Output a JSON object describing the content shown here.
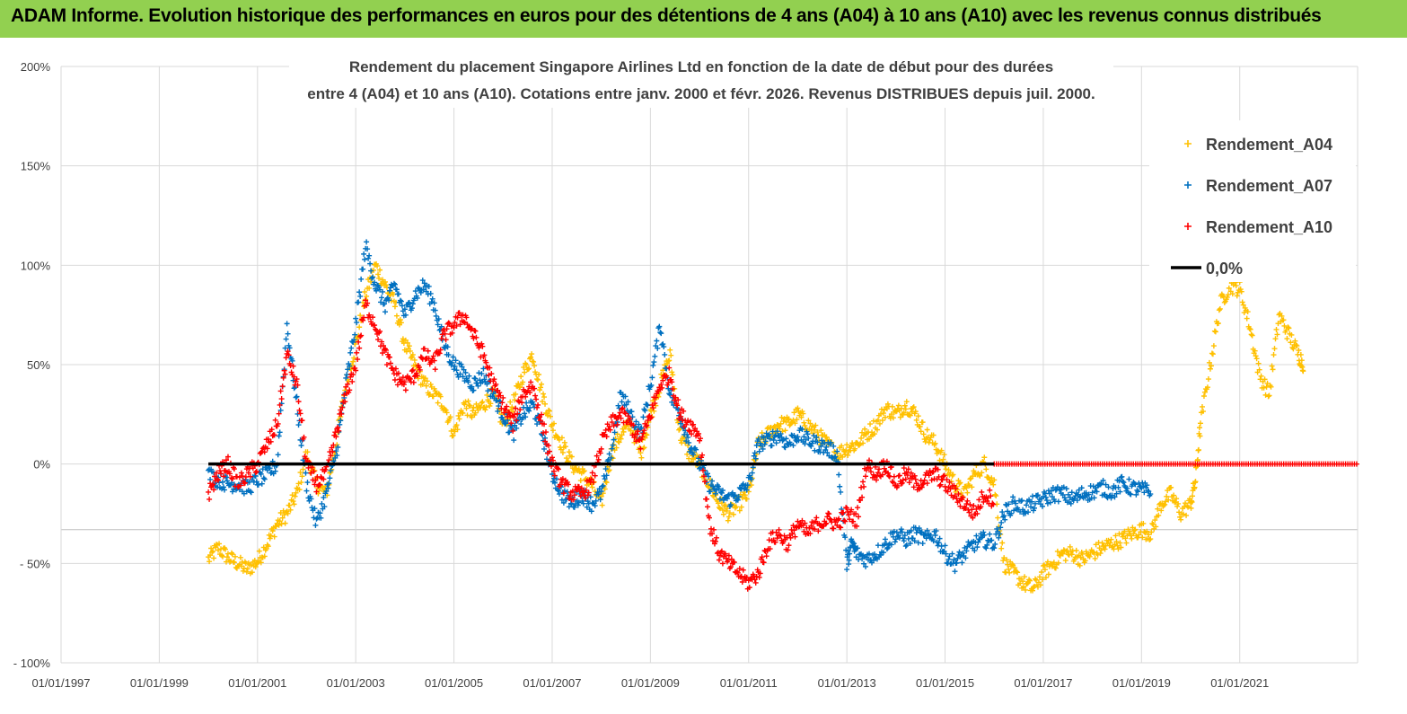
{
  "banner": {
    "title": "ADAM Informe. Evolution historique des performances en euros pour des détentions de 4 ans (A04) à 10 ans (A10) avec les revenus connus distribués"
  },
  "chart_data": {
    "type": "scatter",
    "title_lines": [
      "Rendement du placement Singapore Airlines Ltd en fonction de la date de début pour des durées",
      "entre 4 (A04) et 10 ans (A10).  Cotations entre janv. 2000 et févr. 2026. Revenus DISTRIBUES depuis juil. 2000."
    ],
    "y_ticks": [
      "200%",
      "150%",
      "100%",
      "50%",
      "0%",
      "- 50%",
      "- 100%"
    ],
    "y_tick_values": [
      200,
      150,
      100,
      50,
      0,
      -50,
      -100
    ],
    "ylim": [
      -100,
      200
    ],
    "x_ticks": [
      "01/01/1997",
      "01/01/1999",
      "01/01/2001",
      "01/01/2003",
      "01/01/2005",
      "01/01/2007",
      "01/01/2009",
      "01/01/2011",
      "01/01/2013",
      "01/01/2015",
      "01/01/2017",
      "01/01/2019",
      "01/01/2021"
    ],
    "x_tick_years": [
      1997,
      1999,
      2001,
      2003,
      2005,
      2007,
      2009,
      2011,
      2013,
      2015,
      2017,
      2019,
      2021
    ],
    "xlim": [
      1997.0,
      2023.4
    ],
    "legend_position": "right",
    "legend": [
      {
        "key": "A04",
        "label": "Rendement_A04",
        "color": "#ffc000",
        "marker": "plus"
      },
      {
        "key": "A07",
        "label": "Rendement_A07",
        "color": "#0070c0",
        "marker": "plus"
      },
      {
        "key": "A10",
        "label": "Rendement_A10",
        "color": "#ff0000",
        "marker": "plus"
      },
      {
        "key": "zero",
        "label": "0,0%",
        "color": "#000000",
        "marker": "line"
      }
    ],
    "series": [
      {
        "name": "Rendement_A04",
        "color": "#ffc000",
        "x": [
          2000.0,
          2000.2,
          2000.4,
          2000.6,
          2000.8,
          2001.0,
          2001.2,
          2001.4,
          2001.6,
          2001.8,
          2002.0,
          2002.2,
          2002.4,
          2002.6,
          2002.8,
          2003.0,
          2003.2,
          2003.4,
          2003.6,
          2003.8,
          2004.0,
          2004.2,
          2004.4,
          2004.6,
          2004.8,
          2005.0,
          2005.2,
          2005.4,
          2005.6,
          2005.8,
          2006.0,
          2006.2,
          2006.4,
          2006.6,
          2006.8,
          2007.0,
          2007.2,
          2007.4,
          2007.6,
          2007.8,
          2008.0,
          2008.2,
          2008.4,
          2008.6,
          2008.8,
          2009.0,
          2009.2,
          2009.4,
          2009.6,
          2009.8,
          2010.0,
          2010.2,
          2010.4,
          2010.6,
          2010.8,
          2011.0,
          2011.2,
          2011.4,
          2011.6,
          2011.8,
          2012.0,
          2012.2,
          2012.4,
          2012.6,
          2012.8,
          2013.0,
          2013.2,
          2013.4,
          2013.6,
          2013.8,
          2014.0,
          2014.2,
          2014.4,
          2014.6,
          2014.8,
          2015.0,
          2015.2,
          2015.4,
          2015.6,
          2015.8,
          2016.0,
          2016.2,
          2016.4,
          2016.6,
          2016.8,
          2017.0,
          2017.2,
          2017.4,
          2017.6,
          2017.8,
          2018.0,
          2018.2,
          2018.4,
          2018.6,
          2018.8,
          2019.0,
          2019.2,
          2019.4,
          2019.6,
          2019.8,
          2020.0,
          2020.1,
          2020.2,
          2020.4,
          2020.6,
          2020.8,
          2021.0,
          2021.2,
          2021.4,
          2021.6,
          2021.8,
          2022.0,
          2022.2,
          2022.3
        ],
        "y": [
          -48,
          -42,
          -47,
          -50,
          -53,
          -49,
          -40,
          -30,
          -25,
          -15,
          5,
          -10,
          -15,
          10,
          40,
          60,
          85,
          100,
          90,
          80,
          60,
          50,
          40,
          35,
          30,
          15,
          30,
          25,
          30,
          35,
          20,
          30,
          45,
          55,
          35,
          20,
          10,
          0,
          -5,
          -10,
          -20,
          5,
          15,
          20,
          5,
          25,
          40,
          55,
          15,
          5,
          0,
          -10,
          -20,
          -25,
          -20,
          -15,
          10,
          15,
          20,
          20,
          25,
          20,
          15,
          10,
          5,
          8,
          10,
          15,
          20,
          28,
          25,
          30,
          25,
          15,
          10,
          0,
          -10,
          -15,
          -5,
          0,
          -10,
          -50,
          -55,
          -60,
          -63,
          -55,
          -50,
          -45,
          -45,
          -48,
          -45,
          -42,
          -40,
          -38,
          -35,
          -33,
          -35,
          -20,
          -15,
          -25,
          -20,
          -8,
          20,
          50,
          80,
          90,
          88,
          70,
          45,
          35,
          75,
          65,
          55,
          50
        ],
        "spread": 4
      },
      {
        "name": "Rendement_A07",
        "color": "#0070c0",
        "x": [
          2000.0,
          2000.2,
          2000.4,
          2000.6,
          2000.8,
          2001.0,
          2001.2,
          2001.4,
          2001.6,
          2001.8,
          2002.0,
          2002.2,
          2002.4,
          2002.6,
          2002.8,
          2003.0,
          2003.2,
          2003.4,
          2003.6,
          2003.8,
          2004.0,
          2004.2,
          2004.4,
          2004.6,
          2004.8,
          2005.0,
          2005.2,
          2005.4,
          2005.6,
          2005.8,
          2006.0,
          2006.2,
          2006.4,
          2006.6,
          2006.8,
          2007.0,
          2007.2,
          2007.4,
          2007.6,
          2007.8,
          2008.0,
          2008.2,
          2008.4,
          2008.6,
          2008.8,
          2009.0,
          2009.2,
          2009.4,
          2009.6,
          2009.8,
          2010.0,
          2010.2,
          2010.4,
          2010.6,
          2010.8,
          2011.0,
          2011.2,
          2011.4,
          2011.6,
          2011.8,
          2012.0,
          2012.2,
          2012.4,
          2012.6,
          2012.8,
          2013.0,
          2013.1,
          2013.2,
          2013.4,
          2013.6,
          2013.8,
          2014.0,
          2014.2,
          2014.4,
          2014.6,
          2014.8,
          2015.0,
          2015.2,
          2015.4,
          2015.6,
          2015.8,
          2016.0,
          2016.2,
          2016.4,
          2016.6,
          2016.8,
          2017.0,
          2017.2,
          2017.4,
          2017.6,
          2017.8,
          2018.0,
          2018.2,
          2018.4,
          2018.6,
          2018.8,
          2019.0,
          2019.2
        ],
        "y": [
          -5,
          -8,
          -10,
          -10,
          -12,
          -8,
          -5,
          0,
          70,
          30,
          -10,
          -30,
          -15,
          5,
          40,
          70,
          110,
          90,
          80,
          90,
          75,
          85,
          90,
          80,
          60,
          50,
          45,
          40,
          45,
          35,
          25,
          15,
          25,
          30,
          15,
          -5,
          -15,
          -20,
          -15,
          -20,
          -15,
          5,
          35,
          25,
          15,
          40,
          70,
          35,
          25,
          10,
          0,
          -10,
          -15,
          -18,
          -15,
          -10,
          10,
          12,
          15,
          10,
          15,
          12,
          10,
          8,
          5,
          -50,
          -40,
          -45,
          -48,
          -45,
          -40,
          -35,
          -38,
          -35,
          -38,
          -35,
          -45,
          -50,
          -45,
          -40,
          -38,
          -40,
          -25,
          -20,
          -22,
          -20,
          -18,
          -15,
          -15,
          -18,
          -15,
          -14,
          -12,
          -14,
          -10,
          -12,
          -13,
          -14
        ],
        "spread": 4
      },
      {
        "name": "Rendement_A10",
        "color": "#ff0000",
        "x": [
          2000.0,
          2000.2,
          2000.4,
          2000.6,
          2000.8,
          2001.0,
          2001.2,
          2001.4,
          2001.6,
          2001.8,
          2002.0,
          2002.2,
          2002.4,
          2002.6,
          2002.8,
          2003.0,
          2003.2,
          2003.4,
          2003.6,
          2003.8,
          2004.0,
          2004.2,
          2004.4,
          2004.6,
          2004.8,
          2005.0,
          2005.2,
          2005.4,
          2005.6,
          2005.8,
          2006.0,
          2006.2,
          2006.4,
          2006.6,
          2006.8,
          2007.0,
          2007.2,
          2007.4,
          2007.6,
          2007.8,
          2008.0,
          2008.2,
          2008.4,
          2008.6,
          2008.8,
          2009.0,
          2009.2,
          2009.4,
          2009.6,
          2009.8,
          2010.0,
          2010.2,
          2010.4,
          2010.6,
          2010.8,
          2011.0,
          2011.2,
          2011.4,
          2011.6,
          2011.8,
          2012.0,
          2012.2,
          2012.4,
          2012.6,
          2012.8,
          2013.0,
          2013.2,
          2013.4,
          2013.6,
          2013.8,
          2014.0,
          2014.2,
          2014.4,
          2014.6,
          2014.8,
          2015.0,
          2015.2,
          2015.4,
          2015.6,
          2015.8,
          2016.0
        ],
        "y": [
          -15,
          -5,
          0,
          -10,
          -5,
          0,
          10,
          20,
          55,
          40,
          0,
          -10,
          -5,
          15,
          35,
          50,
          80,
          70,
          55,
          45,
          40,
          45,
          55,
          50,
          65,
          70,
          75,
          65,
          55,
          40,
          30,
          20,
          35,
          40,
          20,
          0,
          -10,
          -15,
          -15,
          -10,
          10,
          20,
          25,
          20,
          10,
          25,
          40,
          45,
          25,
          20,
          15,
          -30,
          -45,
          -50,
          -55,
          -60,
          -55,
          -40,
          -35,
          -40,
          -30,
          -35,
          -30,
          -28,
          -30,
          -25,
          -28,
          0,
          -5,
          0,
          -10,
          -5,
          -10,
          -8,
          -5,
          -10,
          -15,
          -20,
          -25,
          -15,
          -18
        ],
        "spread": 4
      }
    ],
    "zero_line": {
      "label": "0,0%",
      "x_start": 2000.0,
      "x_end": 2016.0,
      "value": 0
    },
    "flat_red_segment": {
      "x_start": 2016.0,
      "x_end": 2023.4,
      "value": 0
    }
  }
}
